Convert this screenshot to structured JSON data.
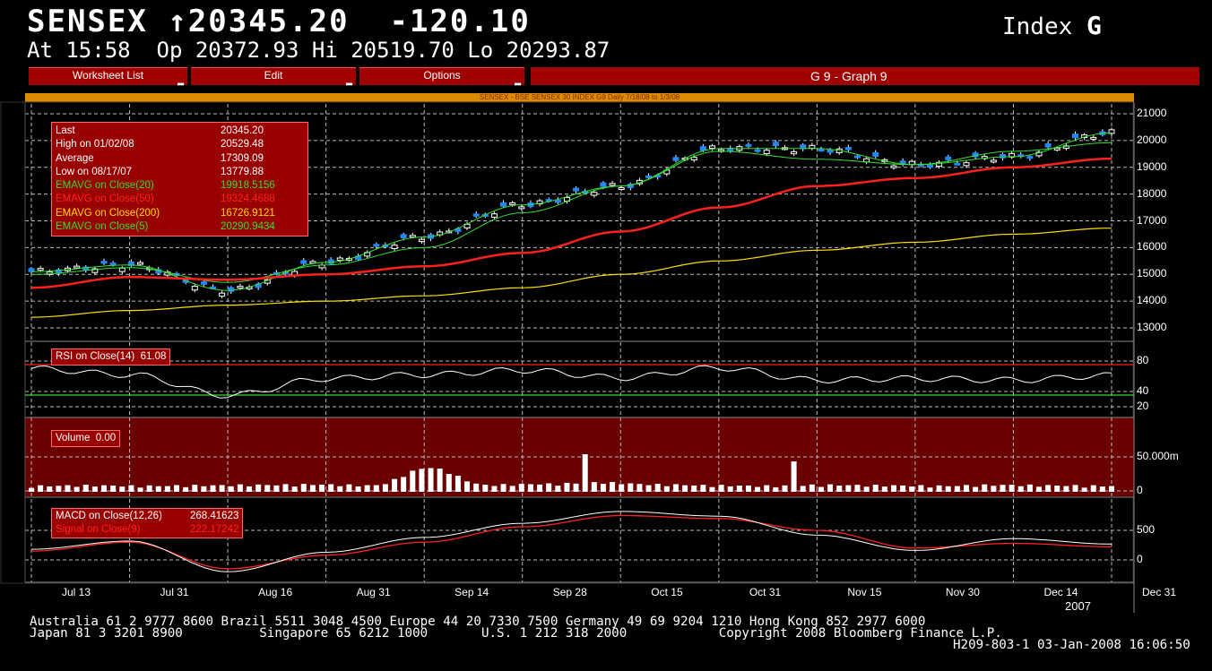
{
  "header": {
    "ticker": "SENSEX",
    "arrow": "↑",
    "last": "20345.20",
    "change": "-120.10",
    "index_label": "Index",
    "index_key": "G",
    "quote_line": "At 15:58  Op 20372.93 Hi 20519.70 Lo 20293.87"
  },
  "menu": {
    "worksheet_list": "Worksheet List",
    "edit": "Edit",
    "options": "Options",
    "graph_title": "G 9 - Graph 9"
  },
  "chart_subtitle": "SENSEX - BSE SENSEX 30 INDEX G9 Daily 7/18/08 to 1/3/08",
  "legend": [
    {
      "name": "Last",
      "value": "20345.20",
      "color": "#ffffff"
    },
    {
      "name": "High on  01/02/08",
      "value": "20529.48",
      "color": "#ffffff"
    },
    {
      "name": "Average",
      "value": "17309.09",
      "color": "#ffffff"
    },
    {
      "name": "Low on  08/17/07",
      "value": "13779.88",
      "color": "#ffffff"
    },
    {
      "name": "EMAVG on Close(20)",
      "value": "19918.5156",
      "color": "#33dd33"
    },
    {
      "name": "EMAVG on Close(50)",
      "value": "19324.4688",
      "color": "#ff2020"
    },
    {
      "name": "EMAVG on Close(200)",
      "value": "16726.9121",
      "color": "#ffdd00"
    },
    {
      "name": "EMAVG on Close(5)",
      "value": "20290.9434",
      "color": "#33dd33"
    }
  ],
  "panes": {
    "rsi_label": "RSI on Close(14)",
    "rsi_value": "61.08",
    "volume_label": "Volume",
    "volume_value": "0.00",
    "macd_label": "MACD on Close(12,26)",
    "macd_value": "268.41623",
    "signal_label": "Signal on Close(9)",
    "signal_value": "222.17242"
  },
  "price_axis": [
    "21000",
    "20000",
    "19000",
    "18000",
    "17000",
    "16000",
    "15000",
    "14000",
    "13000"
  ],
  "rsi_axis": [
    "80",
    "40",
    "20"
  ],
  "volume_axis": [
    "50.000m",
    "0"
  ],
  "macd_axis": [
    "500",
    "0"
  ],
  "x_axis": [
    "Jul 13",
    "Jul 31",
    "Aug 16",
    "Aug 31",
    "Sep 14",
    "Sep 28",
    "Oct 15",
    "Oct 31",
    "Nov 15",
    "Nov 30",
    "Dec 14",
    "Dec 31"
  ],
  "year_label": "2007",
  "footer": {
    "line1": "Australia 61 2 9777 8600 Brazil 5511 3048 4500 Europe 44 20 7330 7500 Germany 49 69 9204 1210 Hong Kong 852 2977 6000",
    "line2": "Japan 81 3 3201 8900          Singapore 65 6212 1000       U.S. 1 212 318 2000            Copyright 2008 Bloomberg Finance L.P.",
    "line3": "H209-803-1 03-Jan-2008 16:06:50"
  },
  "colors": {
    "menu_red": "#a00000",
    "orange_bar": "#e08a00",
    "candle_blue": "#2288ff",
    "ema_green": "#33dd33",
    "ema_red": "#ff2020",
    "ema_yellow": "#ffdd00",
    "volume_bg": "#6a0000"
  },
  "chart_data": {
    "type": "line",
    "x": [
      "Jul 13",
      "Jul 31",
      "Aug 16",
      "Aug 31",
      "Sep 14",
      "Sep 28",
      "Oct 15",
      "Oct 31",
      "Nov 15",
      "Nov 30",
      "Dec 14",
      "Dec 31"
    ],
    "series": [
      {
        "name": "EMAVG on Close(5)",
        "values": [
          15100,
          15350,
          14400,
          15450,
          16400,
          17600,
          18300,
          19700,
          19700,
          19100,
          19400,
          20290
        ]
      },
      {
        "name": "EMAVG on Close(20)",
        "values": [
          15000,
          15250,
          14700,
          15350,
          16000,
          17300,
          18300,
          19600,
          19300,
          19100,
          19600,
          19918
        ]
      },
      {
        "name": "EMAVG on Close(50)",
        "values": [
          14500,
          14900,
          14800,
          15000,
          15300,
          15800,
          16600,
          17500,
          18300,
          18600,
          19000,
          19324
        ]
      },
      {
        "name": "EMAVG on Close(200)",
        "values": [
          13400,
          13650,
          13850,
          14000,
          14200,
          14500,
          15000,
          15500,
          15900,
          16200,
          16500,
          16727
        ]
      }
    ],
    "ylim": [
      13000,
      21000
    ],
    "grid": true,
    "rsi": {
      "values": [
        70,
        62,
        35,
        57,
        62,
        68,
        58,
        71,
        55,
        57,
        55,
        61
      ],
      "ylim": [
        0,
        100
      ]
    },
    "macd": {
      "macd": [
        180,
        320,
        -200,
        130,
        380,
        620,
        820,
        740,
        420,
        160,
        360,
        268
      ],
      "signal": [
        150,
        300,
        -150,
        80,
        300,
        560,
        750,
        700,
        500,
        200,
        280,
        222
      ],
      "ylim": [
        -200,
        900
      ]
    },
    "volume": {
      "values": [
        8,
        9,
        8,
        9,
        10,
        11,
        9,
        45,
        10,
        12,
        15,
        11,
        9,
        8,
        10,
        9,
        8,
        10,
        9,
        8
      ],
      "unit": "m"
    }
  }
}
